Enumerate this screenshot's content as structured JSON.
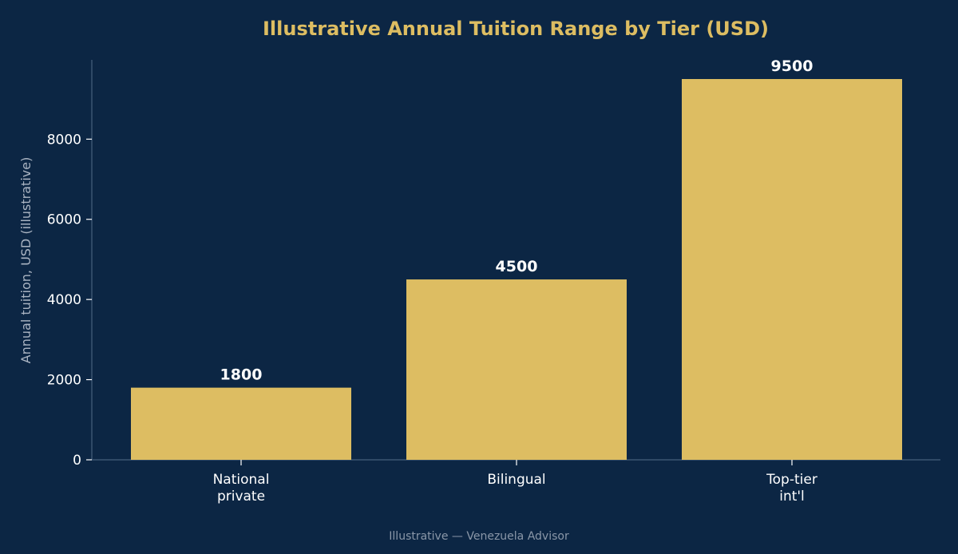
{
  "chart_data": {
    "type": "bar",
    "title": "Illustrative Annual Tuition Range by Tier (USD)",
    "xlabel": "",
    "ylabel": "Annual tuition, USD (illustrative)",
    "categories": [
      [
        "National",
        "private"
      ],
      [
        "Bilingual"
      ],
      [
        "Top-tier",
        "int'l"
      ]
    ],
    "values": [
      1800,
      4500,
      9500
    ],
    "value_labels": [
      "1800",
      "4500",
      "9500"
    ],
    "ylim": [
      0,
      10000
    ],
    "yticks": [
      0,
      2000,
      4000,
      6000,
      8000
    ],
    "ytick_labels": [
      "0",
      "2000",
      "4000",
      "6000",
      "8000"
    ],
    "grid": false,
    "legend": "none"
  },
  "footer": {
    "note": "Illustrative — Venezuela Advisor"
  },
  "colors": {
    "background": "#0c2644",
    "bar": "#ddbd62",
    "title": "#ddbd62",
    "axis": "#3b5572",
    "tick_text": "#ffffff",
    "ylabel_text": "#aab4c2",
    "footer_text": "#8a97a8"
  }
}
